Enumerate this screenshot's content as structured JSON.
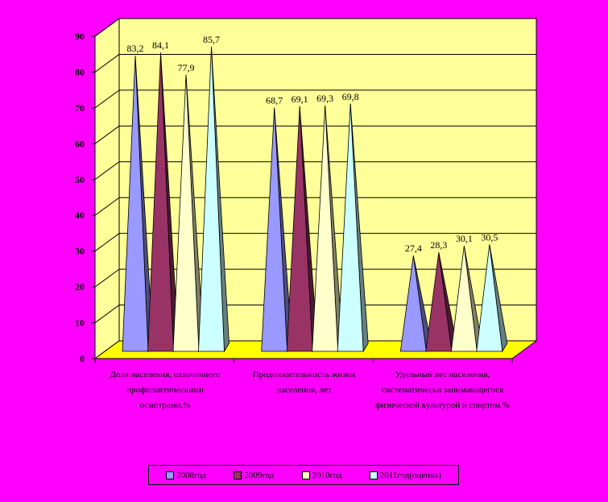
{
  "chart_data": {
    "type": "bar",
    "categories": [
      "Доля населения, охваченного профилактическими осмотрами,%",
      "Продолжительность жизни населения, лет",
      "Удельный вес населения, систематически занимающегося физической культурой и спортом,%"
    ],
    "series": [
      {
        "name": "2008год",
        "values": [
          83.2,
          68.7,
          27.4
        ],
        "color": "#9999FF"
      },
      {
        "name": "2009год",
        "values": [
          84.1,
          69.1,
          28.3
        ],
        "color": "#993366"
      },
      {
        "name": "2010год",
        "values": [
          77.9,
          69.3,
          30.1
        ],
        "color": "#FFFFCC"
      },
      {
        "name": "2011год(оценка)",
        "values": [
          85.7,
          69.8,
          30.5
        ],
        "color": "#CCFFFF"
      }
    ],
    "data_labels": [
      [
        "83,2",
        "68,7",
        "27,4"
      ],
      [
        "84,1",
        "69,1",
        "28,3"
      ],
      [
        "77,9",
        "69,3",
        "30,1"
      ],
      [
        "85,7",
        "69,8",
        "30,5"
      ]
    ],
    "yticks": [
      "0",
      "10",
      "20",
      "30",
      "40",
      "50",
      "60",
      "70",
      "80",
      "90"
    ],
    "ylim": [
      0,
      90
    ],
    "grid": true,
    "legend": "bottom",
    "wall_color": "#FFFF99",
    "floor_color": "#FFFF00"
  }
}
